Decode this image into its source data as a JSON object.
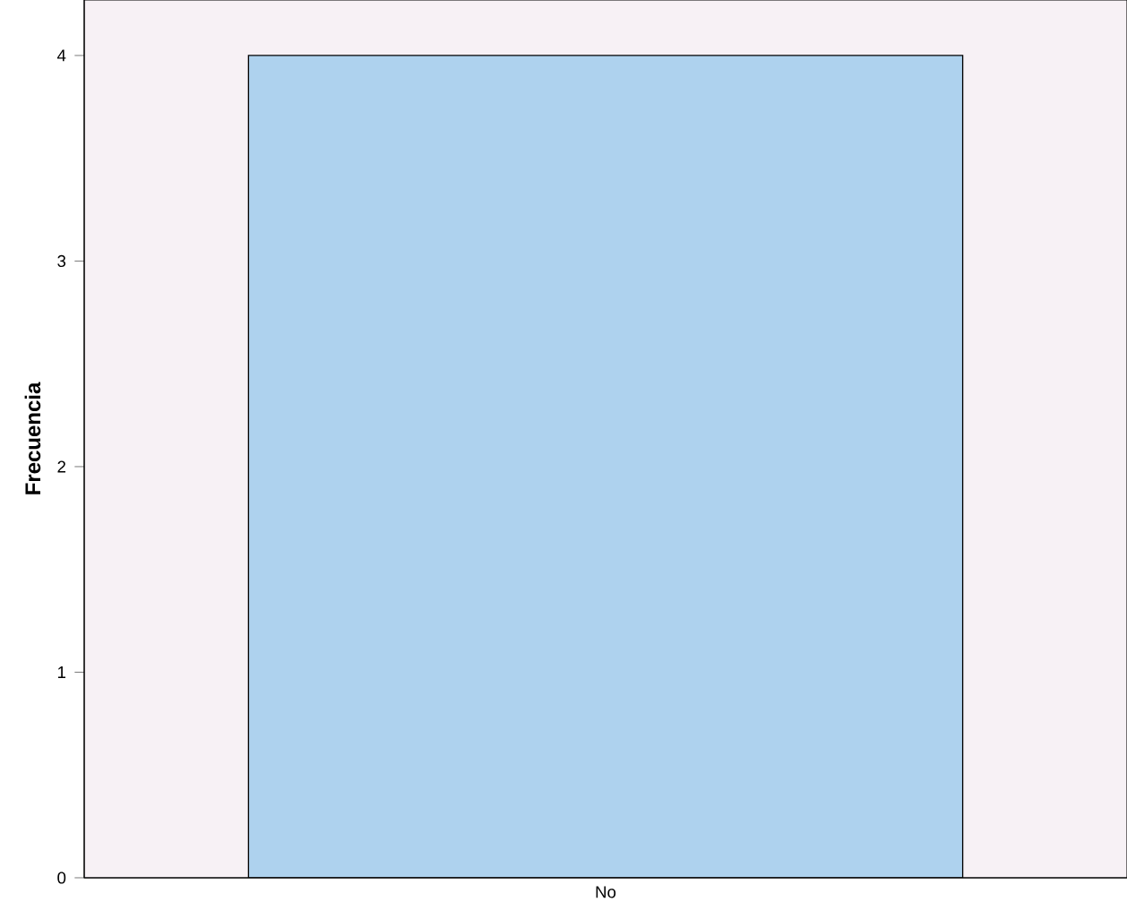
{
  "chart_data": {
    "type": "bar",
    "ylabel": "Frecuencia",
    "categories": [
      "No"
    ],
    "values": [
      4
    ],
    "color": "#aed2ee",
    "ylim": [
      0,
      4.27
    ],
    "yticks": [
      0,
      1,
      2,
      3,
      4
    ],
    "grid": false
  }
}
